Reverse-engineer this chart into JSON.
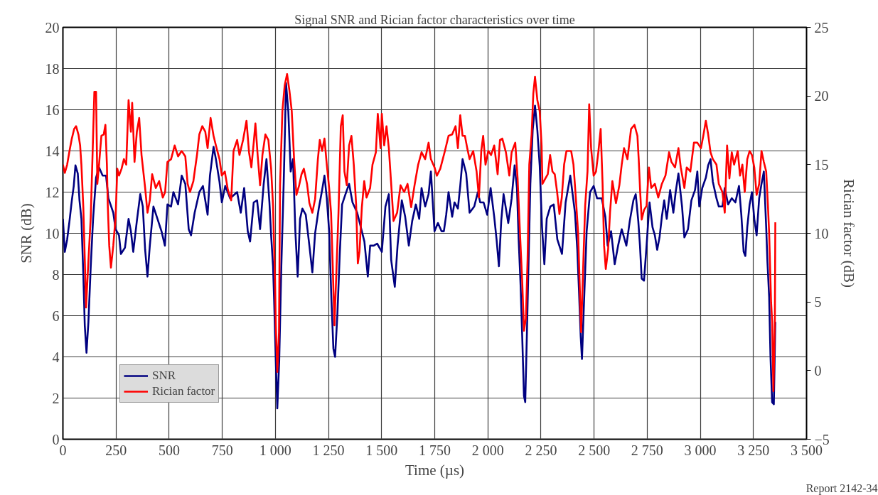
{
  "chart_data": {
    "type": "line",
    "title": "Signal SNR and Rician factor characteristics over time",
    "xlabel": "Time (µs)",
    "ylabel": "SNR (dB)",
    "y2label": "Rician factor (dB)",
    "annotations": [
      "Report 2142-34"
    ],
    "xlim": [
      0,
      3500
    ],
    "xticks": [
      0,
      250,
      500,
      750,
      {
        "value": 1000,
        "label": "1 000"
      },
      {
        "value": 1250,
        "label": "1 250"
      },
      {
        "value": 1500,
        "label": "1 500"
      },
      {
        "value": 1750,
        "label": "1 750"
      },
      {
        "value": 2000,
        "label": "2 000"
      },
      {
        "value": 2250,
        "label": "2 250"
      },
      {
        "value": 2500,
        "label": "2 500"
      },
      {
        "value": 2750,
        "label": "2 750"
      },
      {
        "value": 3000,
        "label": "3 000"
      },
      {
        "value": 3250,
        "label": "3 250"
      },
      {
        "value": 3500,
        "label": "3 500"
      }
    ],
    "ylim": [
      0,
      20
    ],
    "yticks": [
      0,
      2,
      4,
      6,
      8,
      10,
      12,
      14,
      16,
      18,
      20
    ],
    "y2lim": [
      -5,
      25
    ],
    "y2ticks": [
      {
        "value": -5,
        "label": "−5"
      },
      0,
      5,
      10,
      15,
      20,
      25
    ],
    "grid": true,
    "legend": "bottom left",
    "series": [
      {
        "name": "SNR",
        "color": "#000080",
        "x": [
          0,
          9,
          20,
          31,
          42,
          51,
          59,
          70,
          78,
          87,
          96,
          103,
          111,
          120,
          131,
          142,
          156,
          170,
          187,
          203,
          214,
          237,
          248,
          264,
          273,
          292,
          309,
          320,
          331,
          348,
          364,
          376,
          387,
          398,
          409,
          426,
          442,
          464,
          480,
          492,
          509,
          520,
          542,
          559,
          576,
          592,
          603,
          620,
          642,
          659,
          681,
          692,
          709,
          720,
          737,
          748,
          764,
          787,
          820,
          837,
          853,
          870,
          881,
          898,
          914,
          928,
          945,
          958,
          972,
          980,
          989,
          994,
          1002,
          1009,
          1018,
          1028,
          1039,
          1044,
          1050,
          1061,
          1072,
          1083,
          1094,
          1105,
          1116,
          1127,
          1143,
          1160,
          1174,
          1187,
          1204,
          1220,
          1231,
          1242,
          1253,
          1264,
          1273,
          1281,
          1292,
          1303,
          1314,
          1330,
          1347,
          1363,
          1385,
          1402,
          1419,
          1435,
          1446,
          1463,
          1479,
          1501,
          1518,
          1534,
          1545,
          1562,
          1575,
          1595,
          1611,
          1628,
          1644,
          1661,
          1677,
          1688,
          1705,
          1721,
          1732,
          1749,
          1765,
          1782,
          1793,
          1804,
          1815,
          1832,
          1843,
          1859,
          1870,
          1881,
          1898,
          1914,
          1936,
          1953,
          1964,
          1980,
          1997,
          2013,
          2030,
          2041,
          2052,
          2063,
          2074,
          2096,
          2112,
          2126,
          2137,
          2145,
          2154,
          2162,
          2170,
          2176,
          2184,
          2192,
          2200,
          2211,
          2222,
          2233,
          2244,
          2255,
          2266,
          2277,
          2294,
          2310,
          2327,
          2349,
          2366,
          2388,
          2410,
          2421,
          2429,
          2437,
          2443,
          2451,
          2465,
          2481,
          2498,
          2514,
          2536,
          2553,
          2564,
          2580,
          2597,
          2613,
          2630,
          2652,
          2668,
          2685,
          2696,
          2708,
          2716,
          2724,
          2735,
          2747,
          2761,
          2775,
          2786,
          2797,
          2808,
          2819,
          2830,
          2842,
          2858,
          2873,
          2884,
          2897,
          2914,
          2925,
          2942,
          2958,
          2975,
          2986,
          2995,
          3009,
          3026,
          3037,
          3048,
          3059,
          3076,
          3087,
          3104,
          3115,
          3131,
          3148,
          3165,
          3182,
          3193,
          3204,
          3212,
          3221,
          3232,
          3243,
          3254,
          3265,
          3277,
          3288,
          3299,
          3310,
          3316,
          3324,
          3330,
          3338,
          3346,
          3353
        ],
        "values": [
          10.7,
          9.1,
          9.7,
          10.6,
          11.6,
          12.3,
          13.3,
          12.9,
          11.6,
          10.7,
          8.0,
          5.5,
          4.2,
          5.7,
          8.4,
          10.7,
          12.7,
          13.2,
          12.8,
          12.8,
          11.7,
          11.0,
          10.2,
          9.9,
          9.0,
          9.3,
          10.7,
          10.1,
          9.1,
          10.6,
          11.9,
          11.3,
          9.2,
          7.9,
          9.4,
          11.3,
          10.8,
          10.1,
          9.4,
          11.4,
          11.3,
          12.0,
          11.4,
          12.8,
          12.4,
          10.2,
          9.9,
          11.0,
          12.0,
          12.3,
          10.9,
          12.8,
          14.2,
          13.6,
          12.5,
          11.5,
          12.3,
          11.7,
          12.0,
          11.0,
          12.2,
          10.1,
          9.6,
          11.5,
          11.6,
          10.2,
          12.4,
          13.6,
          11.5,
          9.9,
          8.4,
          6.8,
          3.8,
          1.5,
          3.8,
          8.4,
          12.4,
          14.5,
          17.3,
          15.9,
          13.0,
          13.6,
          10.1,
          7.9,
          10.7,
          11.2,
          10.9,
          9.4,
          8.1,
          10.0,
          11.2,
          12.1,
          12.8,
          11.7,
          10.1,
          6.7,
          4.4,
          4.0,
          6.1,
          9.0,
          11.4,
          11.9,
          12.4,
          11.5,
          11.0,
          10.3,
          9.6,
          7.9,
          9.4,
          9.4,
          9.5,
          9.1,
          11.3,
          11.9,
          8.7,
          7.4,
          9.4,
          11.6,
          10.8,
          9.4,
          10.6,
          11.4,
          10.7,
          12.2,
          11.3,
          11.9,
          13.0,
          10.1,
          10.5,
          10.1,
          10.1,
          10.9,
          12.0,
          10.8,
          11.5,
          11.2,
          12.3,
          13.6,
          12.9,
          11.0,
          11.3,
          12.0,
          11.5,
          11.5,
          10.9,
          12.2,
          10.8,
          9.7,
          8.4,
          10.6,
          11.9,
          10.5,
          11.7,
          13.3,
          12.2,
          9.7,
          7.5,
          4.9,
          2.1,
          1.8,
          5.2,
          8.8,
          12.4,
          15.0,
          16.2,
          15.0,
          13.3,
          10.3,
          8.5,
          10.7,
          11.3,
          11.4,
          9.7,
          9.0,
          11.5,
          12.8,
          11.0,
          9.2,
          7.2,
          5.0,
          3.9,
          6.2,
          10.1,
          12.0,
          12.3,
          11.7,
          11.7,
          10.8,
          9.4,
          10.1,
          8.5,
          9.4,
          10.2,
          9.4,
          10.6,
          11.6,
          11.9,
          10.6,
          9.4,
          7.8,
          7.7,
          9.4,
          11.5,
          10.3,
          9.9,
          9.2,
          9.8,
          10.8,
          11.6,
          10.7,
          12.1,
          11.0,
          12.0,
          12.9,
          11.3,
          9.8,
          10.2,
          11.6,
          12.1,
          13.0,
          11.3,
          12.2,
          12.7,
          13.3,
          13.6,
          12.5,
          11.7,
          11.3,
          11.3,
          12.2,
          11.4,
          11.7,
          11.5,
          12.3,
          10.9,
          9.1,
          8.9,
          10.3,
          11.4,
          12.0,
          10.7,
          9.9,
          11.7,
          12.4,
          13.0,
          10.3,
          8.6,
          6.9,
          4.1,
          1.8,
          1.7,
          5.7
        ]
      },
      {
        "name": "Rician factor",
        "color": "#ff0000",
        "axis": "y2",
        "x": [
          0,
          9,
          20,
          31,
          42,
          53,
          62,
          73,
          81,
          87,
          96,
          103,
          109,
          118,
          131,
          140,
          148,
          156,
          162,
          170,
          181,
          192,
          200,
          207,
          211,
          218,
          226,
          237,
          248,
          256,
          264,
          276,
          287,
          298,
          309,
          320,
          326,
          337,
          348,
          359,
          370,
          387,
          398,
          409,
          420,
          437,
          453,
          470,
          481,
          492,
          509,
          526,
          542,
          559,
          576,
          587,
          598,
          614,
          631,
          642,
          656,
          670,
          681,
          695,
          709,
          720,
          737,
          748,
          762,
          776,
          792,
          803,
          820,
          831,
          848,
          864,
          876,
          887,
          898,
          906,
          917,
          928,
          939,
          953,
          967,
          980,
          989,
          998,
          1002,
          1009,
          1017,
          1022,
          1033,
          1044,
          1055,
          1066,
          1077,
          1088,
          1099,
          1112,
          1123,
          1134,
          1149,
          1160,
          1174,
          1187,
          1200,
          1209,
          1220,
          1231,
          1242,
          1253,
          1262,
          1270,
          1278,
          1286,
          1297,
          1308,
          1317,
          1325,
          1336,
          1347,
          1358,
          1369,
          1380,
          1388,
          1396,
          1407,
          1418,
          1429,
          1446,
          1457,
          1473,
          1482,
          1495,
          1501,
          1512,
          1523,
          1534,
          1545,
          1556,
          1573,
          1589,
          1606,
          1622,
          1639,
          1655,
          1672,
          1688,
          1705,
          1721,
          1732,
          1749,
          1760,
          1776,
          1798,
          1815,
          1832,
          1848,
          1859,
          1870,
          1881,
          1892,
          1903,
          1914,
          1931,
          1947,
          1958,
          1969,
          1978,
          1989,
          2002,
          2015,
          2030,
          2046,
          2057,
          2068,
          2085,
          2101,
          2112,
          2129,
          2140,
          2151,
          2162,
          2170,
          2179,
          2187,
          2195,
          2206,
          2214,
          2222,
          2233,
          2244,
          2253,
          2257,
          2271,
          2282,
          2293,
          2304,
          2315,
          2326,
          2337,
          2348,
          2359,
          2370,
          2392,
          2403,
          2414,
          2425,
          2432,
          2439,
          2447,
          2458,
          2469,
          2477,
          2486,
          2498,
          2509,
          2520,
          2531,
          2540,
          2547,
          2555,
          2566,
          2575,
          2586,
          2603,
          2619,
          2630,
          2641,
          2657,
          2674,
          2690,
          2704,
          2710,
          2717,
          2724,
          2735,
          2747,
          2758,
          2769,
          2786,
          2802,
          2819,
          2836,
          2853,
          2864,
          2881,
          2897,
          2908,
          2925,
          2936,
          2953,
          2970,
          2986,
          3003,
          3014,
          3026,
          3037,
          3048,
          3059,
          3076,
          3087,
          3104,
          3115,
          3126,
          3137,
          3148,
          3159,
          3176,
          3187,
          3198,
          3209,
          3221,
          3232,
          3243,
          3254,
          3265,
          3277,
          3288,
          3299,
          3310,
          3318,
          3324,
          3333,
          3338,
          3344,
          3351,
          3353
        ],
        "values": [
          15.0,
          14.4,
          15.0,
          16.0,
          16.9,
          17.6,
          17.8,
          17.2,
          16.4,
          15.0,
          11.9,
          8.1,
          4.6,
          7.4,
          11.2,
          16.0,
          20.3,
          20.3,
          13.6,
          15.0,
          17.1,
          17.2,
          17.9,
          15.0,
          12.1,
          9.1,
          7.5,
          9.1,
          11.2,
          14.7,
          14.2,
          14.7,
          15.4,
          15.0,
          19.7,
          17.4,
          19.5,
          15.2,
          17.4,
          18.4,
          15.7,
          13.3,
          11.5,
          12.4,
          14.3,
          13.3,
          13.8,
          12.6,
          13.0,
          15.2,
          15.4,
          16.4,
          15.6,
          16.0,
          15.6,
          13.6,
          13.0,
          13.8,
          15.7,
          17.2,
          17.8,
          17.4,
          16.2,
          18.4,
          17.1,
          16.4,
          15.4,
          14.2,
          14.5,
          13.2,
          12.4,
          16.0,
          16.8,
          15.7,
          16.8,
          18.2,
          15.9,
          14.8,
          16.6,
          18.0,
          15.6,
          13.5,
          15.7,
          17.2,
          16.8,
          14.7,
          12.0,
          6.7,
          3.3,
          -0.1,
          2.8,
          13.5,
          18.9,
          20.8,
          21.6,
          20.4,
          18.9,
          15.4,
          12.8,
          13.5,
          14.3,
          14.7,
          13.6,
          12.2,
          11.5,
          12.5,
          15.4,
          16.8,
          16.0,
          16.9,
          15.0,
          13.3,
          11.5,
          7.6,
          3.3,
          6.7,
          11.5,
          17.8,
          18.6,
          14.5,
          13.5,
          16.4,
          17.1,
          15.0,
          12.1,
          7.8,
          8.7,
          11.9,
          13.8,
          12.6,
          13.3,
          15.0,
          15.9,
          18.7,
          16.2,
          18.7,
          16.4,
          17.8,
          16.2,
          13.6,
          10.9,
          11.5,
          13.5,
          13.0,
          13.6,
          11.9,
          13.5,
          15.0,
          15.9,
          15.4,
          16.6,
          15.4,
          14.8,
          14.2,
          14.7,
          16.0,
          17.1,
          17.2,
          17.8,
          16.2,
          18.6,
          17.1,
          17.1,
          16.2,
          15.4,
          16.0,
          14.5,
          12.6,
          16.0,
          17.1,
          15.0,
          16.0,
          15.7,
          16.4,
          14.3,
          16.8,
          16.9,
          15.9,
          14.2,
          15.9,
          16.6,
          14.0,
          10.1,
          6.4,
          2.9,
          3.8,
          8.1,
          15.0,
          17.2,
          20.2,
          21.4,
          19.7,
          18.9,
          16.4,
          13.6,
          14.0,
          14.3,
          15.7,
          14.5,
          14.3,
          13.0,
          11.4,
          12.6,
          15.0,
          16.0,
          16.0,
          15.0,
          12.6,
          10.0,
          6.4,
          2.8,
          6.7,
          12.0,
          14.5,
          19.4,
          16.2,
          14.2,
          14.5,
          15.9,
          17.6,
          13.6,
          9.1,
          7.4,
          8.8,
          11.5,
          13.8,
          12.2,
          13.5,
          15.0,
          16.2,
          15.4,
          17.6,
          17.9,
          17.1,
          15.4,
          13.0,
          11.0,
          11.7,
          12.0,
          14.8,
          13.3,
          13.6,
          12.6,
          13.6,
          14.2,
          15.9,
          15.2,
          14.8,
          16.2,
          14.8,
          13.3,
          14.8,
          14.5,
          16.6,
          16.6,
          16.2,
          17.1,
          18.2,
          17.2,
          15.9,
          15.4,
          15.0,
          13.6,
          13.0,
          11.5,
          16.4,
          14.0,
          15.9,
          15.0,
          16.0,
          14.2,
          15.0,
          13.0,
          15.4,
          16.0,
          15.7,
          14.8,
          12.8,
          13.6,
          16.0,
          15.2,
          14.5,
          12.1,
          10.0,
          5.0,
          3.6,
          -1.5,
          3.8,
          10.8
        ]
      }
    ]
  }
}
